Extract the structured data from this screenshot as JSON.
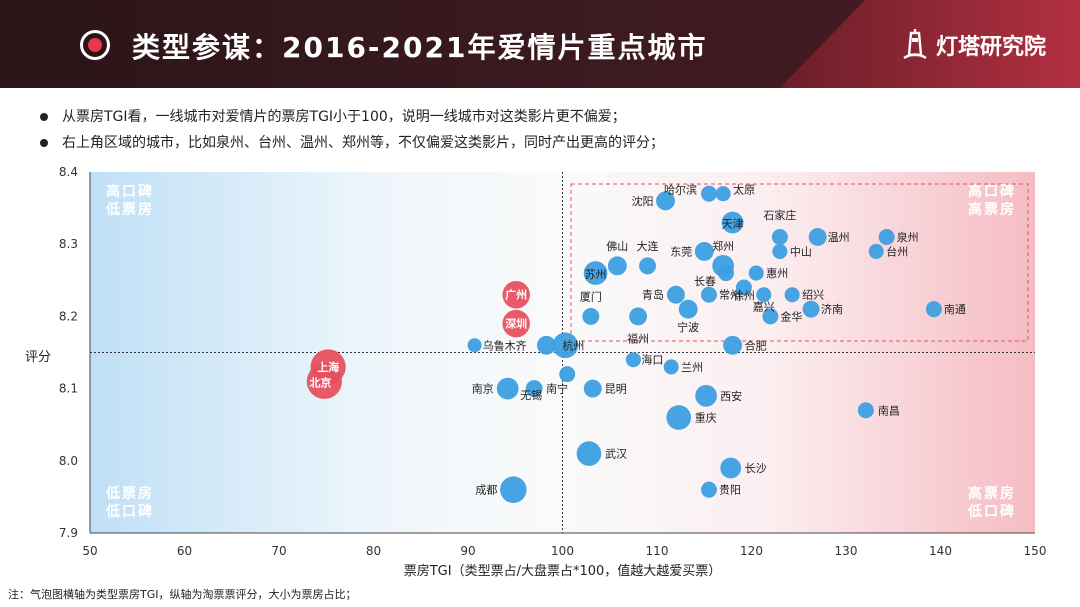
{
  "header": {
    "title": "类型参谋：2016-2021年爱情片重点城市",
    "logo_text": "灯塔研究院",
    "logo_icon": "lighthouse-icon",
    "accent_color": "#e8364c"
  },
  "bullets": [
    "从票房TGI看，一线城市对爱情片的票房TGI小于100，说明一线城市对这类影片更不偏爱；",
    "右上角区域的城市，比如泉州、台州、温州、郑州等，不仅偏爱这类影片，同时产出更高的评分；"
  ],
  "note": "注：气泡图横轴为类型票房TGI，纵轴为淘票票评分，大小为票房占比；",
  "chart_data": {
    "type": "scatter",
    "title": "",
    "xlabel": "票房TGI（类型票占/大盘票占*100，值越大越爱买票）",
    "ylabel": "评分",
    "xlim": [
      50,
      150
    ],
    "ylim": [
      7.9,
      8.4
    ],
    "x_ticks": [
      "50",
      "60",
      "70",
      "80",
      "90",
      "100",
      "110",
      "120",
      "130",
      "140",
      "150"
    ],
    "y_ticks": [
      "7.9",
      "8.0",
      "8.1",
      "8.2",
      "8.3",
      "8.4"
    ],
    "reference_lines": {
      "x": 100,
      "y": 8.15
    },
    "quadrant_labels": {
      "top_left": [
        "高口碑",
        "低票房"
      ],
      "top_right": [
        "高口碑",
        "高票房"
      ],
      "bottom_left": [
        "低票房",
        "低口碑"
      ],
      "bottom_right": [
        "高票房",
        "低口碑"
      ]
    },
    "colors": {
      "normal": "#3d9fe0",
      "highlight": "#e8505f"
    },
    "grid": false,
    "points": [
      {
        "city": "哈尔滨",
        "x": 115.5,
        "y": 8.37,
        "size": 1.0,
        "highlight": false
      },
      {
        "city": "太原",
        "x": 117,
        "y": 8.37,
        "size": 0.9,
        "highlight": false
      },
      {
        "city": "沈阳",
        "x": 110.9,
        "y": 8.36,
        "size": 1.3,
        "highlight": false
      },
      {
        "city": "天津",
        "x": 118,
        "y": 8.33,
        "size": 1.6,
        "highlight": false
      },
      {
        "city": "石家庄",
        "x": 123,
        "y": 8.31,
        "size": 1.0,
        "highlight": false
      },
      {
        "city": "温州",
        "x": 127,
        "y": 8.31,
        "size": 1.2,
        "highlight": false
      },
      {
        "city": "泉州",
        "x": 134.3,
        "y": 8.31,
        "size": 1.0,
        "highlight": false
      },
      {
        "city": "佛山",
        "x": 105.8,
        "y": 8.27,
        "size": 1.3,
        "highlight": false
      },
      {
        "city": "大连",
        "x": 109,
        "y": 8.27,
        "size": 1.1,
        "highlight": false
      },
      {
        "city": "东莞",
        "x": 115,
        "y": 8.29,
        "size": 1.3,
        "highlight": false
      },
      {
        "city": "郑州",
        "x": 117,
        "y": 8.27,
        "size": 1.6,
        "highlight": false
      },
      {
        "city": "中山",
        "x": 123,
        "y": 8.29,
        "size": 0.9,
        "highlight": false
      },
      {
        "city": "台州",
        "x": 133.2,
        "y": 8.29,
        "size": 0.9,
        "highlight": false
      },
      {
        "city": "苏州",
        "x": 103.5,
        "y": 8.26,
        "size": 1.8,
        "highlight": false
      },
      {
        "city": "长春",
        "x": 117.3,
        "y": 8.26,
        "size": 1.0,
        "highlight": false
      },
      {
        "city": "惠州",
        "x": 120.5,
        "y": 8.26,
        "size": 0.9,
        "highlight": false
      },
      {
        "city": "青岛",
        "x": 112,
        "y": 8.23,
        "size": 1.2,
        "highlight": false
      },
      {
        "city": "常州",
        "x": 115.5,
        "y": 8.23,
        "size": 1.0,
        "highlight": false
      },
      {
        "city": "徐州",
        "x": 119.2,
        "y": 8.24,
        "size": 1.0,
        "highlight": false
      },
      {
        "city": "绍兴",
        "x": 124.3,
        "y": 8.23,
        "size": 0.9,
        "highlight": false
      },
      {
        "city": "嘉兴",
        "x": 121.3,
        "y": 8.23,
        "size": 0.9,
        "highlight": false
      },
      {
        "city": "宁波",
        "x": 113.3,
        "y": 8.21,
        "size": 1.3,
        "highlight": false
      },
      {
        "city": "济南",
        "x": 126.3,
        "y": 8.21,
        "size": 1.1,
        "highlight": false
      },
      {
        "city": "南通",
        "x": 139.3,
        "y": 8.21,
        "size": 1.0,
        "highlight": false
      },
      {
        "city": "厦门",
        "x": 103,
        "y": 8.2,
        "size": 1.1,
        "highlight": false
      },
      {
        "city": "福州",
        "x": 108,
        "y": 8.2,
        "size": 1.2,
        "highlight": false
      },
      {
        "city": "金华",
        "x": 122,
        "y": 8.2,
        "size": 1.0,
        "highlight": false
      },
      {
        "city": "合肥",
        "x": 118,
        "y": 8.16,
        "size": 1.3,
        "highlight": false
      },
      {
        "city": "乌鲁木齐",
        "x": 90.7,
        "y": 8.16,
        "size": 0.8,
        "highlight": false
      },
      {
        "city": "杭州",
        "x": 98.3,
        "y": 8.16,
        "size": 1.3,
        "highlight": false
      },
      {
        "city": "杭州",
        "x": 100.3,
        "y": 8.16,
        "size": 2.0,
        "highlight": false
      },
      {
        "city": "海口",
        "x": 107.5,
        "y": 8.14,
        "size": 0.9,
        "highlight": false
      },
      {
        "city": "兰州",
        "x": 111.5,
        "y": 8.13,
        "size": 0.9,
        "highlight": false
      },
      {
        "city": "无锡",
        "x": 100.5,
        "y": 8.12,
        "size": 1.0,
        "highlight": false
      },
      {
        "city": "南京",
        "x": 94.2,
        "y": 8.1,
        "size": 1.6,
        "highlight": false
      },
      {
        "city": "南宁",
        "x": 97,
        "y": 8.1,
        "size": 1.1,
        "highlight": false
      },
      {
        "city": "昆明",
        "x": 103.2,
        "y": 8.1,
        "size": 1.2,
        "highlight": false
      },
      {
        "city": "西安",
        "x": 115.2,
        "y": 8.09,
        "size": 1.6,
        "highlight": false
      },
      {
        "city": "南昌",
        "x": 132.1,
        "y": 8.07,
        "size": 1.0,
        "highlight": false
      },
      {
        "city": "重庆",
        "x": 112.3,
        "y": 8.06,
        "size": 1.9,
        "highlight": false
      },
      {
        "city": "武汉",
        "x": 102.8,
        "y": 8.01,
        "size": 1.9,
        "highlight": false
      },
      {
        "city": "长沙",
        "x": 117.8,
        "y": 7.99,
        "size": 1.5,
        "highlight": false
      },
      {
        "city": "成都",
        "x": 94.8,
        "y": 7.96,
        "size": 2.1,
        "highlight": false
      },
      {
        "city": "贵阳",
        "x": 115.5,
        "y": 7.96,
        "size": 1.0,
        "highlight": false
      },
      {
        "city": "广州",
        "x": 95.1,
        "y": 8.23,
        "size": 2.2,
        "highlight": true
      },
      {
        "city": "深圳",
        "x": 95.1,
        "y": 8.19,
        "size": 2.2,
        "highlight": true
      },
      {
        "city": "上海",
        "x": 75.2,
        "y": 8.13,
        "size": 3.0,
        "highlight": true
      },
      {
        "city": "北京",
        "x": 74.8,
        "y": 8.11,
        "size": 3.0,
        "highlight": true
      }
    ]
  }
}
